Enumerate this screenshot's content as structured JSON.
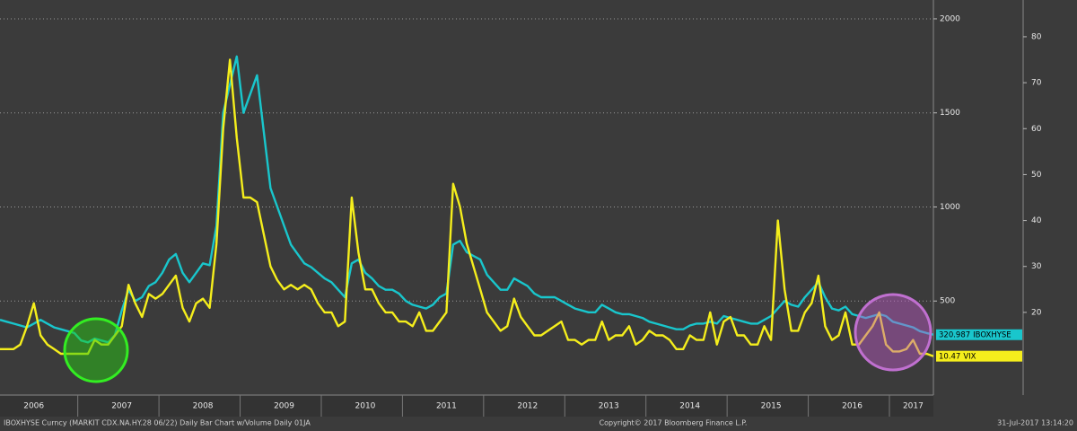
{
  "chart_data": {
    "type": "line",
    "categories": [
      null,
      null,
      null,
      null,
      null,
      "2006",
      null,
      null,
      null,
      null,
      null,
      null,
      null,
      null,
      null,
      null,
      null,
      null,
      "2007",
      null,
      null,
      null,
      null,
      null,
      null,
      null,
      null,
      null,
      null,
      null,
      "2008",
      null,
      null,
      null,
      null,
      null,
      null,
      null,
      null,
      null,
      null,
      null,
      "2009",
      null,
      null,
      null,
      null,
      null,
      null,
      null,
      null,
      null,
      null,
      null,
      "2010",
      null,
      null,
      null,
      null,
      null,
      null,
      null,
      null,
      null,
      null,
      null,
      "2011",
      null,
      null,
      null,
      null,
      null,
      null,
      null,
      null,
      null,
      null,
      null,
      "2012",
      null,
      null,
      null,
      null,
      null,
      null,
      null,
      null,
      null,
      null,
      null,
      "2013",
      null,
      null,
      null,
      null,
      null,
      null,
      null,
      null,
      null,
      null,
      null,
      "2014",
      null,
      null,
      null,
      null,
      null,
      null,
      null,
      null,
      null,
      null,
      null,
      "2015",
      null,
      null,
      null,
      null,
      null,
      null,
      null,
      null,
      null,
      null,
      null,
      "2016",
      null,
      null,
      null,
      null,
      null,
      null,
      null,
      null,
      "2017",
      null,
      null,
      null
    ],
    "series": [
      {
        "name": "IBOXHYSE",
        "color": "#19c6cc",
        "values": [
          400,
          390,
          380,
          370,
          360,
          380,
          400,
          380,
          360,
          350,
          340,
          330,
          290,
          280,
          300,
          290,
          280,
          320,
          450,
          560,
          500,
          520,
          580,
          600,
          650,
          720,
          750,
          650,
          600,
          650,
          700,
          690,
          900,
          1500,
          1650,
          1800,
          1500,
          1600,
          1700,
          1400,
          1100,
          1000,
          900,
          800,
          750,
          700,
          680,
          650,
          620,
          600,
          560,
          520,
          700,
          720,
          650,
          620,
          580,
          560,
          560,
          540,
          500,
          480,
          470,
          460,
          480,
          520,
          540,
          800,
          820,
          760,
          740,
          720,
          640,
          600,
          560,
          560,
          620,
          600,
          580,
          540,
          520,
          520,
          520,
          500,
          480,
          460,
          450,
          440,
          440,
          480,
          460,
          440,
          430,
          430,
          420,
          410,
          390,
          380,
          370,
          360,
          350,
          350,
          370,
          380,
          380,
          390,
          380,
          420,
          410,
          400,
          390,
          380,
          380,
          400,
          420,
          460,
          500,
          480,
          470,
          520,
          560,
          600,
          520,
          460,
          450,
          470,
          430,
          420,
          410,
          420,
          430,
          420,
          390,
          380,
          370,
          360,
          340,
          330,
          320.987
        ],
        "value_labels": [
          null,
          null,
          null,
          null,
          null,
          null,
          null,
          null,
          null,
          null,
          null,
          null,
          null,
          null,
          null,
          null,
          null,
          null,
          null,
          null,
          null,
          null,
          null,
          null,
          null,
          null,
          null,
          null,
          null,
          null,
          null,
          null,
          null,
          null,
          null,
          null,
          null,
          null,
          null,
          null,
          null,
          null,
          null,
          null,
          null,
          null,
          null,
          null,
          null,
          null,
          null,
          null,
          null,
          null,
          null,
          null,
          null,
          null,
          null,
          null,
          null,
          null,
          null,
          null,
          null,
          null,
          null,
          null,
          null,
          null,
          null,
          null,
          null,
          null,
          null,
          null,
          null,
          null,
          null,
          null,
          null,
          null,
          null,
          null,
          null,
          null,
          null,
          null,
          null,
          null,
          null,
          null,
          null,
          null,
          null,
          null,
          null,
          null,
          null,
          null,
          null,
          null,
          null,
          null,
          null,
          null,
          null,
          null,
          null,
          null,
          null,
          null,
          null,
          null,
          null,
          null,
          null,
          null,
          null,
          null,
          null,
          null,
          null,
          null,
          null,
          null,
          null,
          null,
          null,
          null,
          null,
          null,
          null,
          null,
          null,
          null,
          null,
          null,
          "320.987"
        ]
      },
      {
        "name": "VIX",
        "color": "#f5ee1c",
        "axis": "y2",
        "values": [
          12,
          12,
          12,
          13,
          17,
          22,
          15,
          13,
          12,
          11,
          11,
          11,
          11,
          11,
          14,
          13,
          13,
          15,
          17,
          26,
          22,
          19,
          24,
          23,
          24,
          26,
          28,
          21,
          18,
          22,
          23,
          21,
          35,
          60,
          75,
          58,
          45,
          45,
          44,
          37,
          30,
          27,
          25,
          26,
          25,
          26,
          25,
          22,
          20,
          20,
          17,
          18,
          45,
          33,
          25,
          25,
          22,
          20,
          20,
          18,
          18,
          17,
          20,
          16,
          16,
          18,
          20,
          48,
          43,
          35,
          30,
          25,
          20,
          18,
          16,
          17,
          23,
          19,
          17,
          15,
          15,
          16,
          17,
          18,
          14,
          14,
          13,
          14,
          14,
          18,
          14,
          15,
          15,
          17,
          13,
          14,
          16,
          15,
          15,
          14,
          12,
          12,
          15,
          14,
          14,
          20,
          13,
          18,
          19,
          15,
          15,
          13,
          13,
          17,
          14,
          40,
          25,
          16,
          16,
          20,
          22,
          28,
          17,
          14,
          15,
          20,
          13,
          13,
          15,
          17,
          20,
          13,
          11.5,
          11.5,
          12,
          14,
          11,
          11,
          10.47
        ],
        "value_labels": [
          null,
          null,
          null,
          null,
          null,
          null,
          null,
          null,
          null,
          null,
          null,
          null,
          null,
          null,
          null,
          null,
          null,
          null,
          null,
          null,
          null,
          null,
          null,
          null,
          null,
          null,
          null,
          null,
          null,
          null,
          null,
          null,
          null,
          null,
          null,
          null,
          null,
          null,
          null,
          null,
          null,
          null,
          null,
          null,
          null,
          null,
          null,
          null,
          null,
          null,
          null,
          null,
          null,
          null,
          null,
          null,
          null,
          null,
          null,
          null,
          null,
          null,
          null,
          null,
          null,
          null,
          null,
          null,
          null,
          null,
          null,
          null,
          null,
          null,
          null,
          null,
          null,
          null,
          null,
          null,
          null,
          null,
          null,
          null,
          null,
          null,
          null,
          null,
          null,
          null,
          null,
          null,
          null,
          null,
          null,
          null,
          null,
          null,
          null,
          null,
          null,
          null,
          null,
          null,
          null,
          null,
          null,
          null,
          null,
          null,
          null,
          null,
          null,
          null,
          null,
          null,
          null,
          null,
          null,
          null,
          null,
          null,
          null,
          null,
          null,
          null,
          null,
          null,
          null,
          null,
          null,
          null,
          null,
          null,
          null,
          null,
          null,
          null,
          "10.47"
        ]
      }
    ],
    "ylim": [
      0,
      2100
    ],
    "yticks": [
      500,
      1000,
      1500,
      2000
    ],
    "y2lim": [
      2,
      88
    ],
    "y2ticks": [
      20,
      30,
      40,
      50,
      60,
      70,
      80
    ],
    "grid": true,
    "footer_left": "IBOXHYSE Curncy (MARKIT CDX.NA.HY.28 06/22) Daily Bar Chart w/Volume  Daily 01JA",
    "footer_center": "Copyright© 2017 Bloomberg Finance L.P.",
    "footer_right": "31-Jul-2017 13:14:20"
  }
}
